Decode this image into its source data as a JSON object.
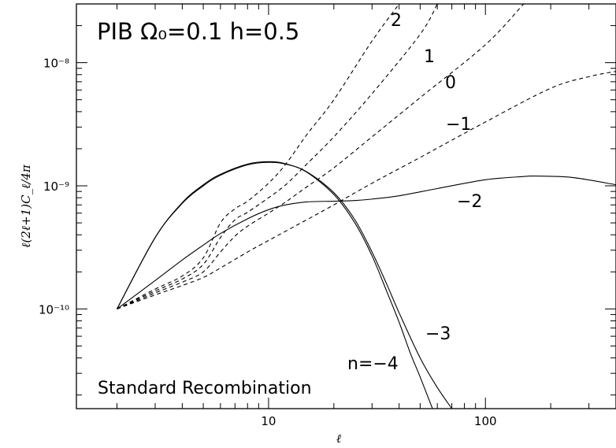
{
  "chart_data": {
    "type": "line",
    "title": "PIB  Ω₀=0.1  h=0.5",
    "annotation": "Standard Recombination",
    "xlabel": "ℓ",
    "ylabel": "ℓ(2ℓ+1)C_ℓ/4π",
    "xscale": "log",
    "yscale": "log",
    "xlim": [
      1.3,
      400
    ],
    "ylim": [
      1.55e-11,
      3e-08
    ],
    "x_tick_labels": [
      "10",
      "100"
    ],
    "y_tick_labels": [
      "10⁻¹⁰",
      "10⁻⁹",
      "10⁻⁸"
    ],
    "grid": false,
    "series": [
      {
        "name": "2",
        "style": "dashed",
        "x": [
          2,
          3,
          4,
          5,
          6,
          7,
          8,
          10,
          12,
          15,
          20,
          30,
          40
        ],
        "y": [
          1e-10,
          1.45e-10,
          1.85e-10,
          2.6e-10,
          5e-10,
          6.5e-10,
          7.5e-10,
          1.05e-09,
          1.5e-09,
          2.6e-09,
          5e-09,
          1.5e-08,
          3e-08
        ]
      },
      {
        "name": "1",
        "style": "dashed",
        "x": [
          2,
          3,
          4,
          5,
          6,
          7,
          8,
          10,
          12,
          15,
          20,
          30,
          50,
          60
        ],
        "y": [
          1e-10,
          1.4e-10,
          1.75e-10,
          2.3e-10,
          3.8e-10,
          5.3e-10,
          6.1e-10,
          8e-10,
          1.02e-09,
          1.5e-09,
          2.5e-09,
          5.6e-09,
          1.7e-08,
          3e-08
        ]
      },
      {
        "name": "0",
        "style": "dashed",
        "x": [
          2,
          3,
          4,
          5,
          6,
          7,
          8,
          10,
          12,
          15,
          20,
          30,
          50,
          100,
          150
        ],
        "y": [
          1e-10,
          1.35e-10,
          1.65e-10,
          2e-10,
          2.9e-10,
          3.9e-10,
          4.7e-10,
          6e-10,
          7.4e-10,
          9.8e-10,
          1.4e-09,
          2.5e-09,
          5.2e-09,
          1.4e-08,
          3e-08
        ]
      },
      {
        "name": "−1",
        "style": "dashed",
        "x": [
          2,
          3,
          4,
          5,
          6,
          8,
          10,
          15,
          20,
          30,
          50,
          100,
          200,
          300,
          400
        ],
        "y": [
          1e-10,
          1.3e-10,
          1.55e-10,
          1.8e-10,
          2.15e-10,
          2.9e-10,
          3.6e-10,
          5.3e-10,
          7e-10,
          1.05e-09,
          1.7e-09,
          3.3e-09,
          6.2e-09,
          7.7e-09,
          8.5e-09
        ]
      },
      {
        "name": "−2",
        "style": "solid",
        "x": [
          2,
          3,
          4,
          5,
          6,
          8,
          10,
          12,
          15,
          20,
          25,
          30,
          40,
          60,
          100,
          150,
          170,
          250,
          400
        ],
        "y": [
          1e-10,
          1.7e-10,
          2.5e-10,
          3.3e-10,
          4.1e-10,
          5.4e-10,
          6.4e-10,
          7e-10,
          7.4e-10,
          7.5e-10,
          7.6e-10,
          7.8e-10,
          8.3e-10,
          9.5e-10,
          1.12e-09,
          1.19e-09,
          1.2e-09,
          1.17e-09,
          1.02e-09
        ]
      },
      {
        "name": "−3",
        "style": "solid",
        "x": [
          2,
          3,
          4,
          5,
          6,
          8,
          10,
          12,
          15,
          20,
          25,
          30,
          35,
          40,
          50,
          60,
          70
        ],
        "y": [
          1e-10,
          3.8e-10,
          7.2e-10,
          1e-09,
          1.22e-09,
          1.48e-09,
          1.55e-09,
          1.5e-09,
          1.3e-09,
          8.8e-10,
          5.3e-10,
          2.9e-10,
          1.6e-10,
          9.3e-11,
          4e-11,
          2.3e-11,
          1.55e-11
        ]
      },
      {
        "name": "n=−4",
        "style": "solid",
        "x": [
          2,
          3,
          4,
          5,
          6,
          8,
          10,
          12,
          15,
          20,
          25,
          30,
          35,
          40,
          45,
          50,
          57
        ],
        "y": [
          1e-10,
          3.8e-10,
          7.3e-10,
          1.02e-09,
          1.24e-09,
          1.5e-09,
          1.57e-09,
          1.51e-09,
          1.29e-09,
          8.5e-10,
          5e-10,
          2.7e-10,
          1.4e-10,
          7.8e-11,
          4.4e-11,
          2.8e-11,
          1.55e-11
        ]
      }
    ]
  }
}
